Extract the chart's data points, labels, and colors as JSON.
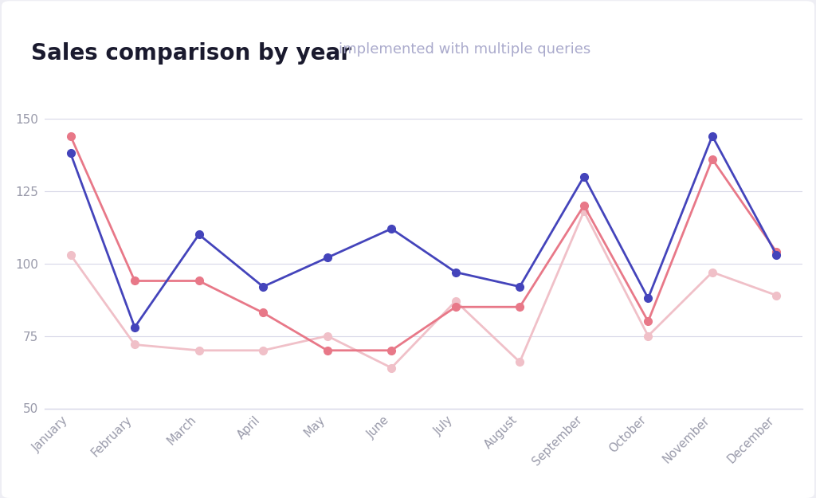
{
  "title": "Sales comparison by year",
  "subtitle": "implemented with multiple queries",
  "months": [
    "January",
    "February",
    "March",
    "April",
    "May",
    "June",
    "July",
    "August",
    "September",
    "October",
    "November",
    "December"
  ],
  "series": {
    "2022": [
      138,
      78,
      110,
      92,
      102,
      112,
      97,
      92,
      130,
      88,
      144,
      103
    ],
    "2021": [
      144,
      94,
      94,
      83,
      70,
      70,
      85,
      85,
      120,
      80,
      136,
      104
    ],
    "2020": [
      103,
      72,
      70,
      70,
      75,
      64,
      87,
      66,
      118,
      75,
      97,
      89
    ]
  },
  "colors": {
    "2022": "#4444bb",
    "2021": "#e87888",
    "2020": "#f0c0c8"
  },
  "ylim": [
    50,
    160
  ],
  "yticks": [
    50,
    75,
    100,
    125,
    150
  ],
  "background_color": "#ffffff",
  "outer_background": "#eeeef4",
  "title_fontsize": 20,
  "subtitle_fontsize": 13,
  "subtitle_color": "#aaaacc",
  "tick_color": "#999aaa",
  "grid_color": "#d8d8e8",
  "marker_size": 7,
  "line_width": 2.0
}
